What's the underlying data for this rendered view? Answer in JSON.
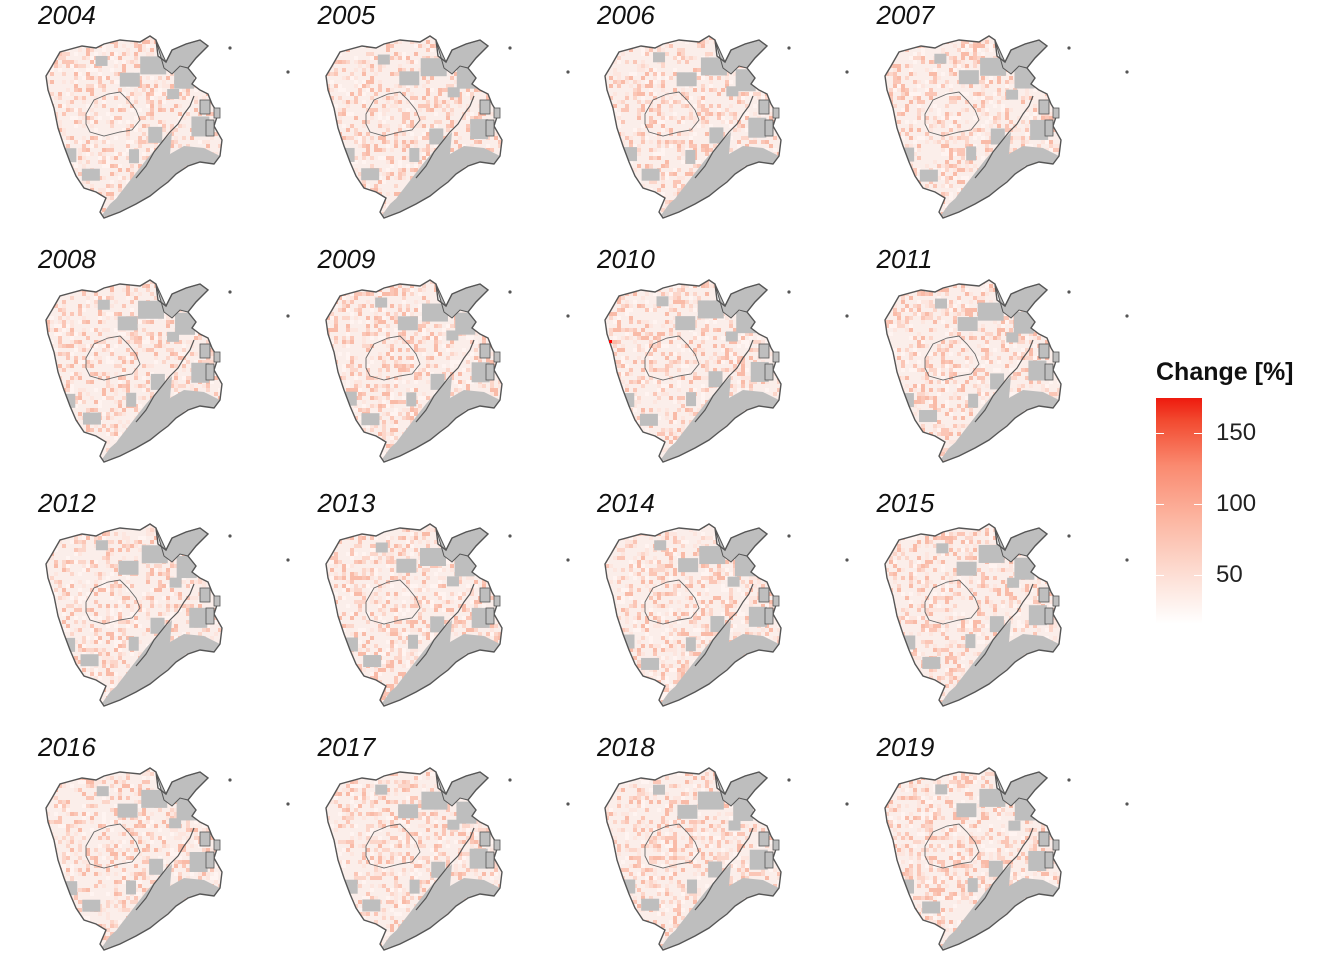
{
  "panels": [
    {
      "year": "2004"
    },
    {
      "year": "2005"
    },
    {
      "year": "2006"
    },
    {
      "year": "2007"
    },
    {
      "year": "2008"
    },
    {
      "year": "2009"
    },
    {
      "year": "2010"
    },
    {
      "year": "2011"
    },
    {
      "year": "2012"
    },
    {
      "year": "2013"
    },
    {
      "year": "2014"
    },
    {
      "year": "2015"
    },
    {
      "year": "2016"
    },
    {
      "year": "2017"
    },
    {
      "year": "2018"
    },
    {
      "year": "2019"
    }
  ],
  "legend": {
    "title": "Change [%]",
    "ticks": [
      {
        "value": 150,
        "label": "150"
      },
      {
        "value": 100,
        "label": "100"
      },
      {
        "value": 50,
        "label": "50"
      }
    ],
    "range": [
      15,
      175
    ],
    "color_low": "#ffffff",
    "color_high": "#ee1a0e"
  },
  "colors": {
    "land_gray": "#bebebe",
    "outline": "#555555",
    "highlight": "#ff0000"
  }
}
